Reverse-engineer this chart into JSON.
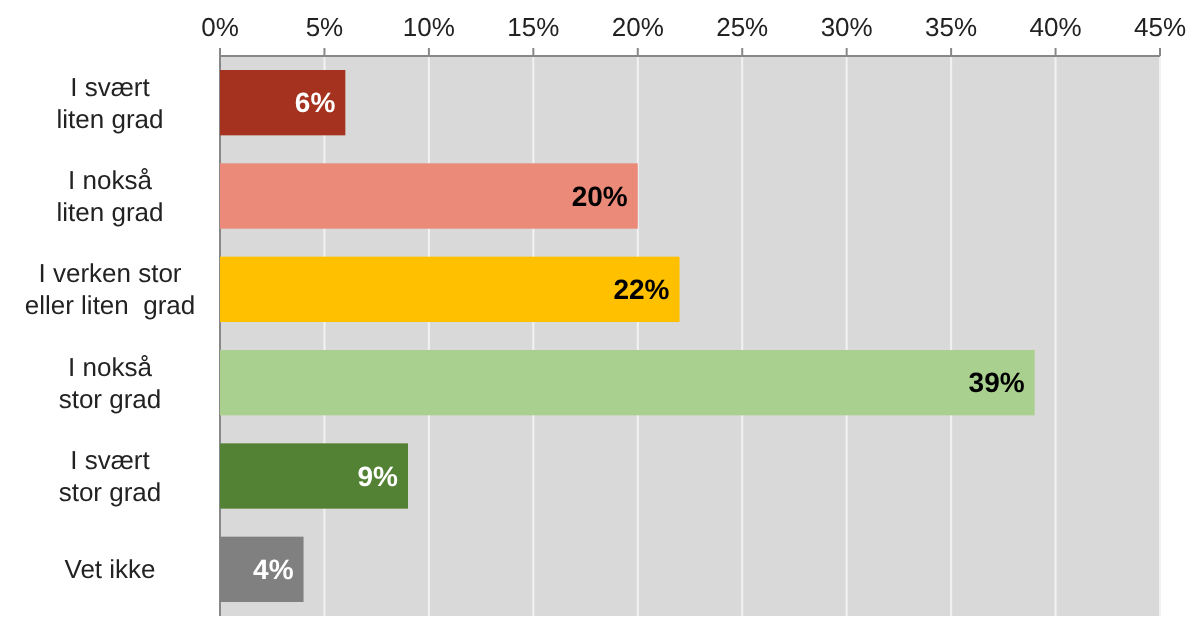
{
  "chart_data": {
    "type": "bar",
    "orientation": "horizontal",
    "categories": [
      "I svært\nliten grad",
      "I nokså\nliten grad",
      "I verken stor\neller liten  grad",
      "I nokså\nstor grad",
      "I svært\nstor grad",
      "Vet ikke"
    ],
    "values": [
      6,
      20,
      22,
      39,
      9,
      4
    ],
    "colors": [
      "#a5321e",
      "#ec8a7a",
      "#ffc000",
      "#a9d08e",
      "#548235",
      "#808080"
    ],
    "value_labels": [
      "6%",
      "20%",
      "22%",
      "39%",
      "9%",
      "4%"
    ],
    "xlim": [
      0,
      45
    ],
    "xticks": [
      {
        "value": 0,
        "label": "0%"
      },
      {
        "value": 5,
        "label": "5%"
      },
      {
        "value": 10,
        "label": "10%"
      },
      {
        "value": 15,
        "label": "15%"
      },
      {
        "value": 20,
        "label": "20%"
      },
      {
        "value": 25,
        "label": "25%"
      },
      {
        "value": 30,
        "label": "30%"
      },
      {
        "value": 35,
        "label": "35%"
      },
      {
        "value": 40,
        "label": "40%"
      },
      {
        "value": 45,
        "label": "45%"
      }
    ],
    "grid": "x"
  }
}
